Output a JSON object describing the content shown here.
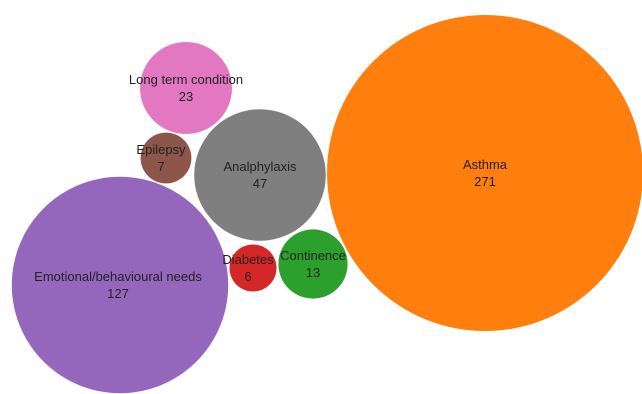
{
  "chart_data": {
    "type": "bubble",
    "bubbles": [
      {
        "label": "Asthma",
        "value": 271,
        "color": "#ff7f0e"
      },
      {
        "label": "Emotional/behavioural needs",
        "value": 127,
        "color": "#9467bd"
      },
      {
        "label": "Analphylaxis",
        "value": 47,
        "color": "#7f7f7f"
      },
      {
        "label": "Long term condition",
        "value": 23,
        "color": "#e377c2"
      },
      {
        "label": "Continence",
        "value": 13,
        "color": "#2ca02c"
      },
      {
        "label": "Epilepsy",
        "value": 7,
        "color": "#8c564b"
      },
      {
        "label": "Diabetes",
        "value": 6,
        "color": "#d62728"
      }
    ]
  }
}
